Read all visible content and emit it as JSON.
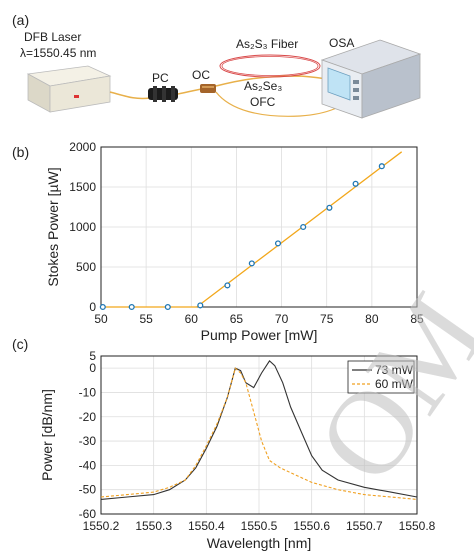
{
  "panels": {
    "a": {
      "label": "(a)",
      "components": {
        "laser_name": "DFB Laser",
        "laser_wavelength": "λ=1550.45 nm",
        "pc": "PC",
        "oc": "OC",
        "fiber": "As₂S₃ Fiber",
        "ofc_top": "As₂Se₃",
        "ofc_bottom": "OFC",
        "osa": "OSA"
      }
    },
    "b": {
      "label": "(b)"
    },
    "c": {
      "label": "(c)"
    }
  },
  "colors": {
    "fit_line": "#f2a71b",
    "marker": "#1f77b4",
    "trace_73": "#333333",
    "trace_60": "#f0a020",
    "fiber": "#d94a4a",
    "watermark": "#bfbfbf"
  },
  "watermark": "OM",
  "chart_data": [
    {
      "type": "scatter",
      "xlabel": "Pump Power [mW]",
      "ylabel": "Stokes Power [µW]",
      "xlim": [
        50,
        85
      ],
      "ylim": [
        0,
        2000
      ],
      "xticks": [
        "50",
        "55",
        "60",
        "65",
        "70",
        "75",
        "80",
        "85"
      ],
      "yticks": [
        "0",
        "500",
        "1000",
        "1500",
        "2000"
      ],
      "grid": true,
      "series": [
        {
          "marker": "circle",
          "x": [
            50.2,
            53.4,
            57.4,
            61.0,
            64.0,
            66.7,
            69.6,
            72.4,
            75.3,
            78.2,
            81.1
          ],
          "y": [
            0,
            0,
            0,
            20,
            270,
            545,
            795,
            1000,
            1240,
            1540,
            1760
          ]
        }
      ],
      "fit_line": {
        "x": [
          50,
          60.6,
          83.3
        ],
        "y": [
          0,
          0,
          1940
        ]
      }
    },
    {
      "type": "line",
      "xlabel": "Wavelength [nm]",
      "ylabel": "Power [dB/nm]",
      "xlim": [
        1550.2,
        1550.8
      ],
      "ylim": [
        -60,
        5
      ],
      "xticks": [
        "1550.2",
        "1550.3",
        "1550.4",
        "1550.5",
        "1550.6",
        "1550.7",
        "1550.8"
      ],
      "yticks": [
        "5",
        "0",
        "-10",
        "-20",
        "-30",
        "-40",
        "-50",
        "-60"
      ],
      "grid": true,
      "legend_position": "top-right",
      "series": [
        {
          "name": "73 mW",
          "style": "solid",
          "x": [
            1550.2,
            1550.25,
            1550.3,
            1550.33,
            1550.36,
            1550.38,
            1550.4,
            1550.42,
            1550.44,
            1550.455,
            1550.465,
            1550.475,
            1550.49,
            1550.505,
            1550.52,
            1550.53,
            1550.545,
            1550.56,
            1550.58,
            1550.6,
            1550.62,
            1550.65,
            1550.7,
            1550.75,
            1550.8
          ],
          "y": [
            -54,
            -53,
            -52,
            -50,
            -46,
            -41,
            -33,
            -24,
            -12,
            0,
            -1,
            -6,
            -8,
            -2,
            3,
            1,
            -6,
            -16,
            -26,
            -36,
            -42,
            -46,
            -49,
            -51,
            -53
          ]
        },
        {
          "name": "60 mW",
          "style": "dashed",
          "x": [
            1550.2,
            1550.25,
            1550.3,
            1550.33,
            1550.36,
            1550.38,
            1550.4,
            1550.42,
            1550.44,
            1550.455,
            1550.465,
            1550.475,
            1550.49,
            1550.505,
            1550.52,
            1550.54,
            1550.56,
            1550.58,
            1550.6,
            1550.65,
            1550.7,
            1550.75,
            1550.8
          ],
          "y": [
            -53,
            -52,
            -51,
            -49,
            -46,
            -40,
            -32,
            -23,
            -12,
            0,
            -2,
            -6,
            -18,
            -30,
            -38,
            -41,
            -43,
            -45,
            -47,
            -50,
            -52,
            -53,
            -54
          ]
        }
      ]
    }
  ]
}
